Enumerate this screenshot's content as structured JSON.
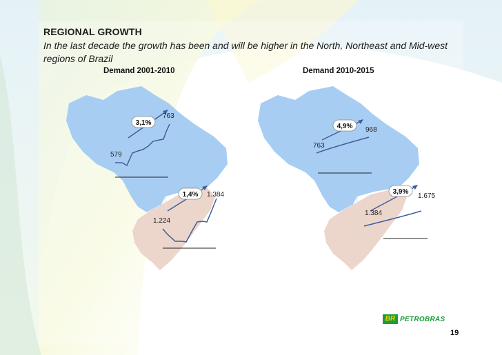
{
  "slide": {
    "title": "REGIONAL GROWTH",
    "subtitle": "In the last decade the growth has been and will be higher in the North, Northeast and Mid-west regions of Brazil",
    "page_number": "19",
    "logo_mark": "BR",
    "logo_text": "PETROBRAS",
    "colors": {
      "map_blue": "#a8cdf3",
      "map_pink": "#ecd5cb",
      "line_blue": "#3f5f9a",
      "logo_green": "#1a9e3c",
      "logo_yellow": "#f5d000"
    }
  },
  "panels": [
    {
      "title": "Demand 2001-2010",
      "north": {
        "growth": "3,1%",
        "start": "579",
        "end": "763"
      },
      "south": {
        "growth": "1,4%",
        "start": "1.224",
        "end": "1.384"
      }
    },
    {
      "title": "Demand 2010-2015",
      "north": {
        "growth": "4,9%",
        "start": "763",
        "end": "968"
      },
      "south": {
        "growth": "3,9%",
        "start": "1.384",
        "end": "1.675"
      }
    }
  ]
}
